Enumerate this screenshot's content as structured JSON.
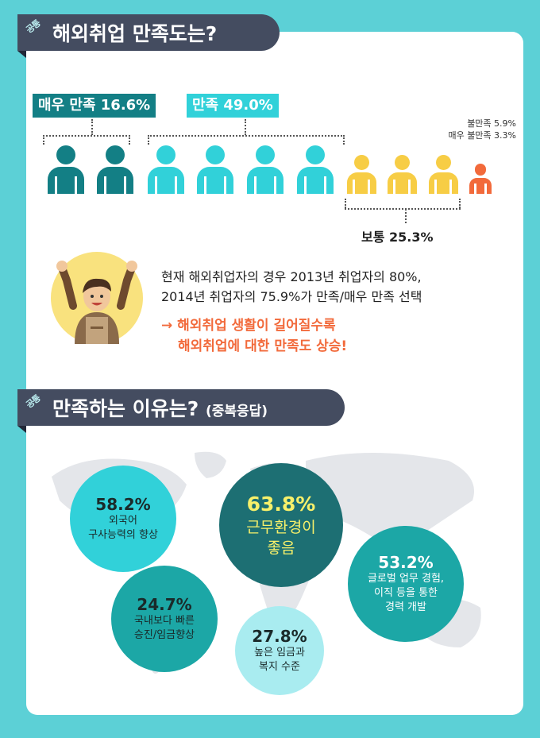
{
  "section1": {
    "tag": "공통",
    "title": "해외취업 만족도는?"
  },
  "satisfaction": {
    "very_satisfied_label": "매우 만족 16.6%",
    "satisfied_label": "만족 49.0%",
    "normal_label": "보통 25.3%",
    "dissatisfied_label": "불만족 5.9%",
    "very_dissatisfied_label": "매우 불만족 3.3%",
    "colors": {
      "very_satisfied": "#137f85",
      "satisfied": "#31d1d9",
      "normal": "#f7cd45",
      "dissatisfied": "#f26a3b"
    }
  },
  "description": {
    "line1": "현재 해외취업자의 경우 2013년 취업자의 80%,",
    "line2": "2014년 취업자의 75.9%가 만족/매우 만족 선택",
    "arrow_line1": "→ 해외취업 생활이 길어질수록",
    "arrow_line2": "해외취업에 대한 만족도 상승!"
  },
  "section2": {
    "tag": "공통",
    "title": "만족하는 이유는?",
    "subtitle": "(중복응답)"
  },
  "reasons": [
    {
      "pct": "58.2%",
      "text": "외국어\n구사능력의 향상"
    },
    {
      "pct": "63.8%",
      "text": "근무환경이\n좋음"
    },
    {
      "pct": "53.2%",
      "text": "글로벌 업무 경험,\n이직 등을 통한\n경력 개발"
    },
    {
      "pct": "24.7%",
      "text": "국내보다 빠른\n승진/임금향상"
    },
    {
      "pct": "27.8%",
      "text": "높은 임금과\n복지 수준"
    }
  ]
}
